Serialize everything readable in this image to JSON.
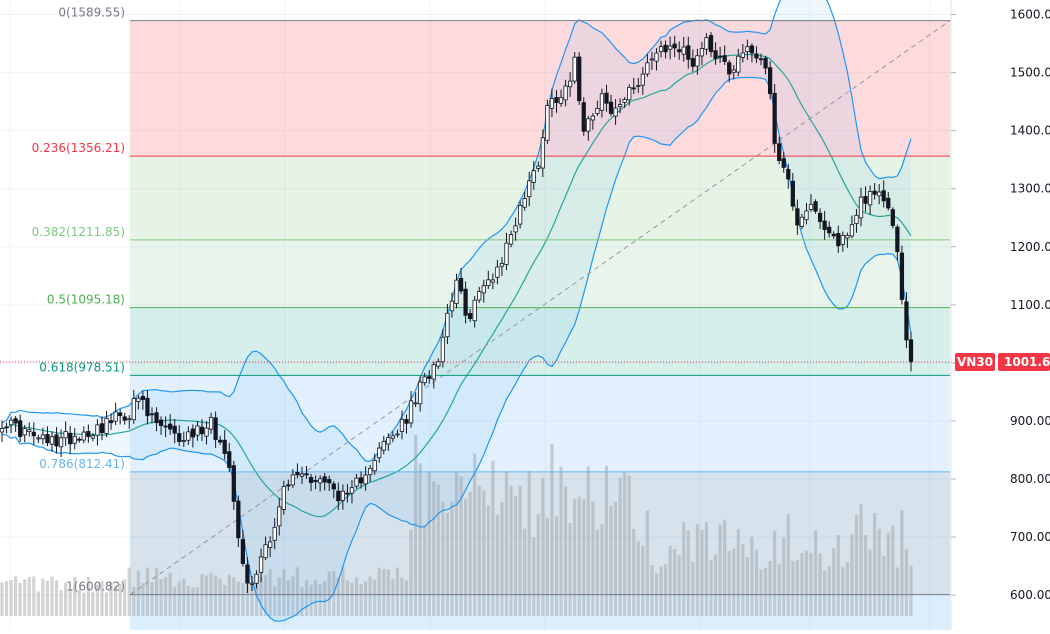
{
  "symbol": "VN30",
  "last_price": "1001.6",
  "colors": {
    "fib_0_236": "#f23645",
    "fib_0_382": "#81c784",
    "fib_0_5": "#4caf50",
    "fib_0_618": "#089981",
    "fib_0_786": "#64b5f6",
    "fib_1": "#787b86",
    "bb_band": "#2196f3",
    "bb_basis": "#26a69a",
    "price_tag": "#f23645"
  },
  "chart_data": {
    "type": "candlestick",
    "y_axis": {
      "range": [
        540,
        1625
      ],
      "ticks": [
        {
          "label": "1600.00",
          "value": 1600
        },
        {
          "label": "1500.00",
          "value": 1500
        },
        {
          "label": "1400.00",
          "value": 1400
        },
        {
          "label": "1300.00",
          "value": 1300
        },
        {
          "label": "1200.00",
          "value": 1200
        },
        {
          "label": "1100.00",
          "value": 1100
        },
        {
          "label": "1000.00",
          "value": 1000
        },
        {
          "label": "900.00",
          "value": 900
        },
        {
          "label": "800.00",
          "value": 800
        },
        {
          "label": "700.00",
          "value": 700
        },
        {
          "label": "600.00",
          "value": 600
        }
      ]
    },
    "fibonacci": [
      {
        "label": "0(1589.55)",
        "ratio": 0,
        "price": 1589.55
      },
      {
        "label": "0.236(1356.21)",
        "ratio": 0.236,
        "price": 1356.21
      },
      {
        "label": "0.382(1211.85)",
        "ratio": 0.382,
        "price": 1211.85
      },
      {
        "label": "0.5(1095.18)",
        "ratio": 0.5,
        "price": 1095.18
      },
      {
        "label": "0.618(978.51)",
        "ratio": 0.618,
        "price": 978.51
      },
      {
        "label": "0.786(812.41)",
        "ratio": 0.786,
        "price": 812.41
      },
      {
        "label": "1(600.82)",
        "ratio": 1,
        "price": 600.82
      }
    ],
    "last_price": 1001.6,
    "bars": 201,
    "close_anchors": [
      [
        0,
        900
      ],
      [
        10,
        862
      ],
      [
        20,
        885
      ],
      [
        28,
        915
      ],
      [
        30,
        940
      ],
      [
        32,
        910
      ],
      [
        38,
        870
      ],
      [
        42,
        878
      ],
      [
        46,
        900
      ],
      [
        48,
        860
      ],
      [
        50,
        832
      ],
      [
        53,
        650
      ],
      [
        55,
        612
      ],
      [
        57,
        672
      ],
      [
        60,
        720
      ],
      [
        62,
        780
      ],
      [
        65,
        810
      ],
      [
        70,
        800
      ],
      [
        73,
        782
      ],
      [
        76,
        762
      ],
      [
        80,
        818
      ],
      [
        84,
        858
      ],
      [
        88,
        890
      ],
      [
        92,
        955
      ],
      [
        96,
        1015
      ],
      [
        100,
        1152
      ],
      [
        102,
        1072
      ],
      [
        104,
        1105
      ],
      [
        110,
        1178
      ],
      [
        114,
        1268
      ],
      [
        118,
        1348
      ],
      [
        120,
        1442
      ],
      [
        124,
        1478
      ],
      [
        126,
        1515
      ],
      [
        128,
        1410
      ],
      [
        132,
        1462
      ],
      [
        134,
        1428
      ],
      [
        138,
        1462
      ],
      [
        142,
        1518
      ],
      [
        148,
        1548
      ],
      [
        152,
        1520
      ],
      [
        155,
        1555
      ],
      [
        160,
        1505
      ],
      [
        164,
        1545
      ],
      [
        168,
        1518
      ],
      [
        170,
        1385
      ],
      [
        173,
        1310
      ],
      [
        175,
        1245
      ],
      [
        178,
        1278
      ],
      [
        180,
        1232
      ],
      [
        183,
        1210
      ],
      [
        186,
        1218
      ],
      [
        189,
        1282
      ],
      [
        192,
        1298
      ],
      [
        194,
        1270
      ],
      [
        196,
        1245
      ],
      [
        197,
        1185
      ],
      [
        198,
        1110
      ],
      [
        199,
        1052
      ],
      [
        200,
        1001.6
      ]
    ]
  }
}
